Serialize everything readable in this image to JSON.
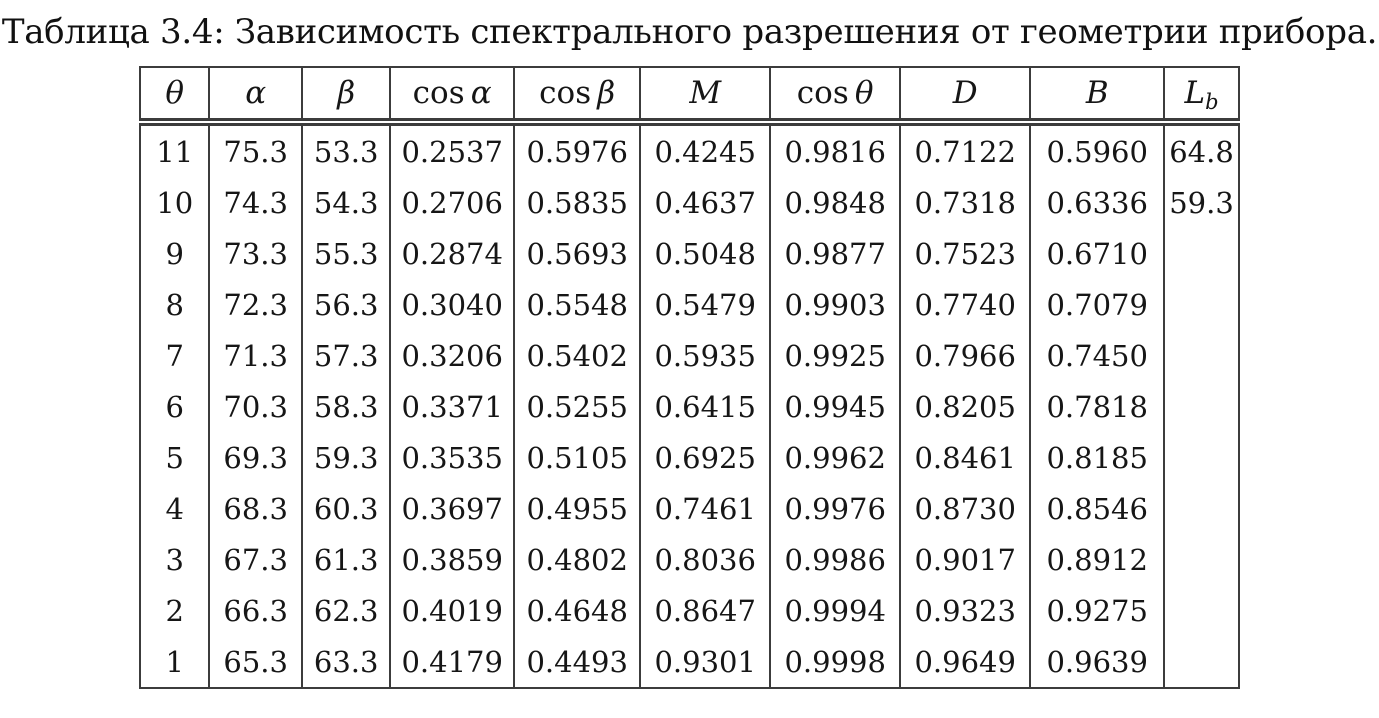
{
  "caption": "Таблица 3.4: Зависимость спектрального разрешения от геометрии прибора.",
  "table": {
    "headers": [
      "θ",
      "α",
      "β",
      "cos α",
      "cos β",
      "M",
      "cos θ",
      "D",
      "B",
      "L_b"
    ],
    "header_names": [
      "theta",
      "alpha",
      "beta",
      "cos-alpha",
      "cos-beta",
      "m",
      "cos-theta",
      "d",
      "b",
      "lb"
    ],
    "rows": [
      [
        "11",
        "75.3",
        "53.3",
        "0.2537",
        "0.5976",
        "0.4245",
        "0.9816",
        "0.7122",
        "0.5960",
        "64.8"
      ],
      [
        "10",
        "74.3",
        "54.3",
        "0.2706",
        "0.5835",
        "0.4637",
        "0.9848",
        "0.7318",
        "0.6336",
        "59.3"
      ],
      [
        "9",
        "73.3",
        "55.3",
        "0.2874",
        "0.5693",
        "0.5048",
        "0.9877",
        "0.7523",
        "0.6710",
        ""
      ],
      [
        "8",
        "72.3",
        "56.3",
        "0.3040",
        "0.5548",
        "0.5479",
        "0.9903",
        "0.7740",
        "0.7079",
        ""
      ],
      [
        "7",
        "71.3",
        "57.3",
        "0.3206",
        "0.5402",
        "0.5935",
        "0.9925",
        "0.7966",
        "0.7450",
        ""
      ],
      [
        "6",
        "70.3",
        "58.3",
        "0.3371",
        "0.5255",
        "0.6415",
        "0.9945",
        "0.8205",
        "0.7818",
        ""
      ],
      [
        "5",
        "69.3",
        "59.3",
        "0.3535",
        "0.5105",
        "0.6925",
        "0.9962",
        "0.8461",
        "0.8185",
        ""
      ],
      [
        "4",
        "68.3",
        "60.3",
        "0.3697",
        "0.4955",
        "0.7461",
        "0.9976",
        "0.8730",
        "0.8546",
        ""
      ],
      [
        "3",
        "67.3",
        "61.3",
        "0.3859",
        "0.4802",
        "0.8036",
        "0.9986",
        "0.9017",
        "0.8912",
        ""
      ],
      [
        "2",
        "66.3",
        "62.3",
        "0.4019",
        "0.4648",
        "0.8647",
        "0.9994",
        "0.9323",
        "0.9275",
        ""
      ],
      [
        "1",
        "65.3",
        "63.3",
        "0.4179",
        "0.4493",
        "0.9301",
        "0.9998",
        "0.9649",
        "0.9639",
        ""
      ]
    ]
  }
}
